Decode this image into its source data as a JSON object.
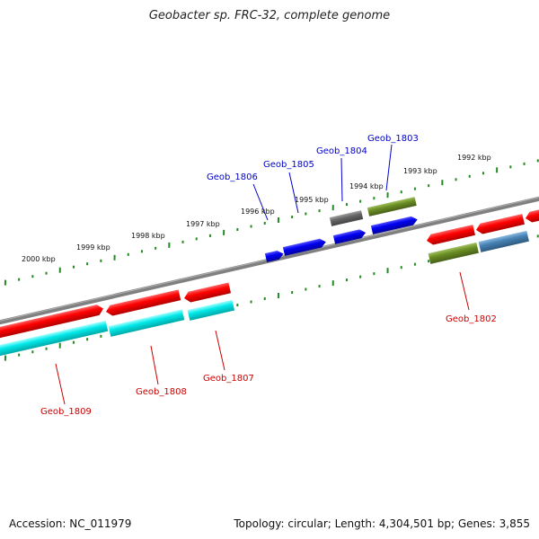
{
  "title": "Geobacter sp. FRC-32, complete genome",
  "footer": {
    "accession": "Accession: NC_011979",
    "summary": "Topology: circular; Length: 4,304,501 bp; Genes: 3,855"
  },
  "ticks": [
    {
      "label": "2000 kbp"
    },
    {
      "label": "1999 kbp"
    },
    {
      "label": "1998 kbp"
    },
    {
      "label": "1997 kbp"
    },
    {
      "label": "1996 kbp"
    },
    {
      "label": "1995 kbp"
    },
    {
      "label": "1994 kbp"
    },
    {
      "label": "1993 kbp"
    },
    {
      "label": "1992 kbp"
    }
  ],
  "gene_labels": [
    {
      "name": "Geob_1806",
      "color": "#0000cc"
    },
    {
      "name": "Geob_1805",
      "color": "#0000cc"
    },
    {
      "name": "Geob_1804",
      "color": "#0000cc"
    },
    {
      "name": "Geob_1803",
      "color": "#0000cc"
    },
    {
      "name": "Geob_1802",
      "color": "#cc0000"
    },
    {
      "name": "Geob_1809",
      "color": "#cc0000"
    },
    {
      "name": "Geob_1808",
      "color": "#cc0000"
    },
    {
      "name": "Geob_1807",
      "color": "#cc0000"
    }
  ],
  "colors": {
    "cds_forward": "#ff0000",
    "cds_reverse_teal": "#00e0e0",
    "blue_genes": "#0000ee",
    "olive_genes": "#6b8e23",
    "gray_gene": "#666666",
    "steelblue_gene": "#4682b4",
    "backbone": "#808080",
    "tick_green": "#228b22"
  }
}
